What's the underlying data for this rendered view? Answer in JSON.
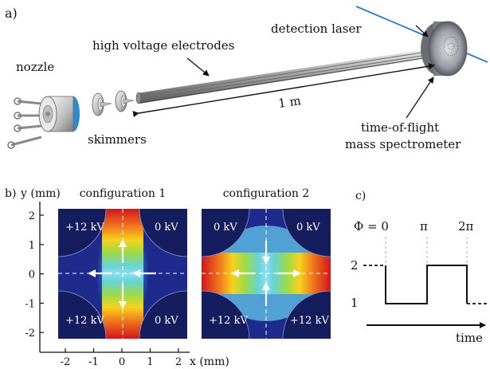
{
  "panel_a": {
    "label": "a)",
    "nozzle": "nozzle",
    "electrodes": "high  voltage electrodes",
    "laser": "detection laser",
    "length": "1 m",
    "skimmers": "skimmers",
    "tof_line1": "time-of-flight",
    "tof_line2": "mass spectrometer"
  },
  "panel_b": {
    "label": "b)",
    "y_axis": "y (mm)",
    "x_axis": "x (mm)",
    "y_ticks": [
      "2",
      "1",
      "0",
      "-1",
      "-2"
    ],
    "x_ticks": [
      "-2",
      "-1",
      "0",
      "1",
      "2"
    ],
    "config1": {
      "title": "configuration 1",
      "tl": "+12 kV",
      "tr": "0 kV",
      "bl": "+12 kV",
      "br": "0 kV"
    },
    "config2": {
      "title": "configuration 2",
      "tl": "0 kV",
      "tr": "0 kV",
      "bl": "+12 kV",
      "br": "+12 kV"
    }
  },
  "panel_c": {
    "label": "c)",
    "phi": "Φ = 0",
    "pi": "π",
    "two_pi": "2π",
    "level_high": "2",
    "level_low": "1",
    "time": "time"
  },
  "colors": {
    "field_background": "#1e2b8c",
    "electrode": "#151d5e",
    "accent_laser": "#2a7bc9"
  }
}
